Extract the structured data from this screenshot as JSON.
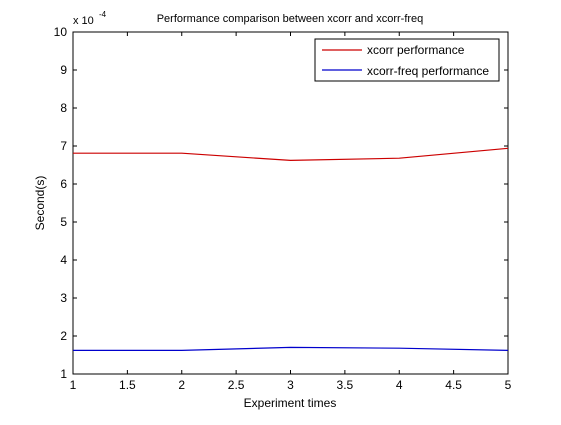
{
  "chart_data": {
    "type": "line",
    "title": "Performance comparison between xcorr and xcorr-freq",
    "xlabel": "Experiment times",
    "ylabel": "Second(s)",
    "y_scale_base": "x 10",
    "y_scale_exponent": "-4",
    "xlim": [
      1,
      5
    ],
    "ylim": [
      1,
      10
    ],
    "x_ticks": [
      1,
      1.5,
      2,
      2.5,
      3,
      3.5,
      4,
      4.5,
      5
    ],
    "x_tick_labels": [
      "1",
      "1.5",
      "2",
      "2.5",
      "3",
      "3.5",
      "4",
      "4.5",
      "5"
    ],
    "y_ticks": [
      1,
      2,
      3,
      4,
      5,
      6,
      7,
      8,
      9,
      10
    ],
    "y_tick_labels": [
      "1",
      "2",
      "3",
      "4",
      "5",
      "6",
      "7",
      "8",
      "9",
      "10"
    ],
    "grid": false,
    "legend_position": "top-right",
    "series": [
      {
        "name": "xcorr performance",
        "color": "#cc0000",
        "x": [
          1,
          2,
          3,
          4,
          5
        ],
        "y": [
          6.81,
          6.81,
          6.62,
          6.68,
          6.94
        ]
      },
      {
        "name": "xcorr-freq performance",
        "color": "#0000cc",
        "x": [
          1,
          2,
          3,
          4,
          5
        ],
        "y": [
          1.62,
          1.62,
          1.7,
          1.68,
          1.62
        ]
      }
    ]
  }
}
